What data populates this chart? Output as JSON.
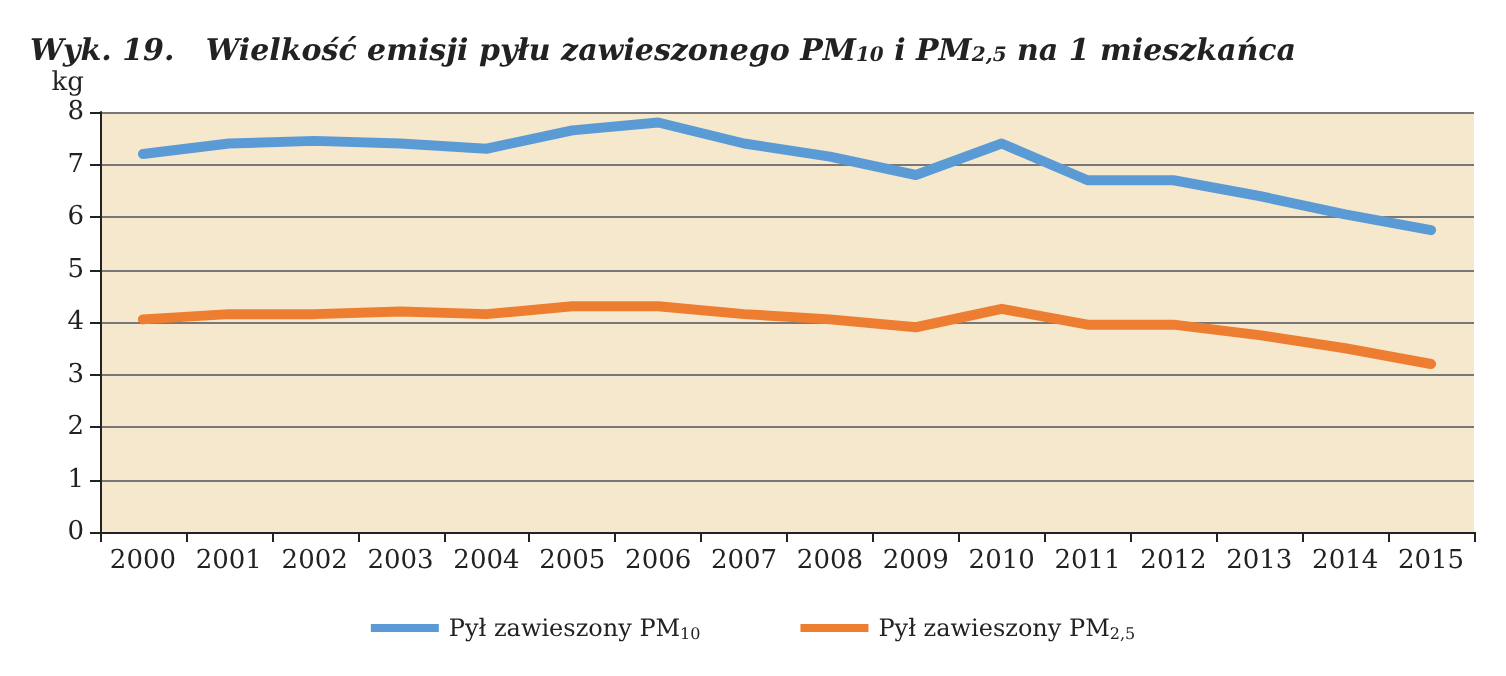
{
  "chart_data": {
    "type": "line",
    "title": "Wyk. 19.   Wielkość emisji pyłu zawieszonego PM$_{10}$ i PM$_{2,5}$ na 1 mieszkańca",
    "ylabel": "kg",
    "categories": [
      "2000",
      "2001",
      "2002",
      "2003",
      "2004",
      "2005",
      "2006",
      "2007",
      "2008",
      "2009",
      "2010",
      "2011",
      "2012",
      "2013",
      "2014",
      "2015"
    ],
    "series": [
      {
        "name": "Pył zawieszony PM$_{10}$",
        "color": "#5b9bd5",
        "values": [
          7.2,
          7.4,
          7.45,
          7.4,
          7.3,
          7.65,
          7.8,
          7.4,
          7.15,
          6.8,
          7.4,
          6.7,
          6.7,
          6.4,
          6.05,
          5.75
        ]
      },
      {
        "name": "Pył zawieszony PM$_{2,5}$",
        "color": "#ed7d31",
        "values": [
          4.05,
          4.15,
          4.15,
          4.2,
          4.15,
          4.3,
          4.3,
          4.15,
          4.05,
          3.9,
          4.25,
          3.95,
          3.95,
          3.75,
          3.5,
          3.2
        ]
      }
    ],
    "ylim": [
      0,
      8
    ],
    "yticks": [
      0,
      1,
      2,
      3,
      4,
      5,
      6,
      7,
      8
    ],
    "grid": "y",
    "legend": "bottom",
    "marker": "none",
    "line_style": "solid"
  }
}
